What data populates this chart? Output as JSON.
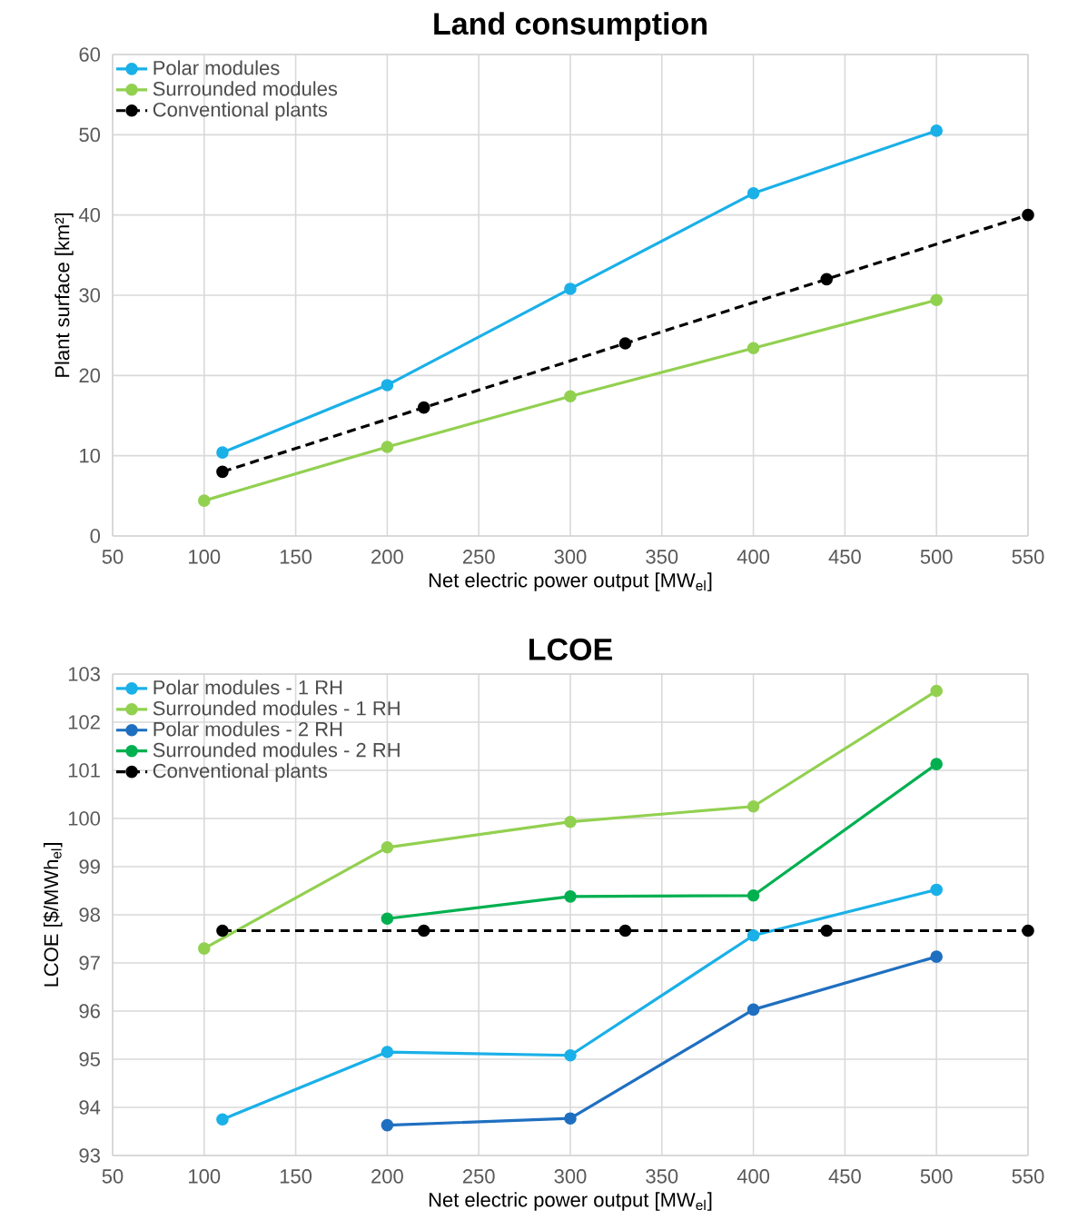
{
  "chart_data": [
    {
      "type": "line",
      "title": "Land consumption",
      "xlabel": "Net electric power output [MW$_{el}$]",
      "ylabel": "Plant surface [km²]",
      "xlim": [
        50,
        550
      ],
      "xticks": [
        50,
        100,
        150,
        200,
        250,
        300,
        350,
        400,
        450,
        500,
        550
      ],
      "ylim": [
        0,
        60
      ],
      "yticks": [
        0,
        10,
        20,
        30,
        40,
        50,
        60
      ],
      "grid": true,
      "legend": "top left",
      "marker": "circle",
      "series": [
        {
          "name": "Polar modules",
          "color": "#1ab0e8",
          "x": [
            110,
            200,
            300,
            400,
            500
          ],
          "values": [
            10.4,
            18.8,
            30.8,
            42.7,
            50.5
          ]
        },
        {
          "name": "Surrounded modules",
          "color": "#92d050",
          "x": [
            100,
            200,
            300,
            400,
            500
          ],
          "values": [
            4.4,
            11.1,
            17.4,
            23.4,
            29.4
          ]
        },
        {
          "name": "Conventional plants",
          "color": "#000000",
          "line_style": "dashed",
          "x": [
            110,
            220,
            330,
            440,
            550
          ],
          "values": [
            8,
            16,
            24,
            32,
            40
          ]
        }
      ]
    },
    {
      "type": "line",
      "title": "LCOE",
      "xlabel": "Net electric power output [MW$_{el}$]",
      "ylabel": "LCOE [$/MWh$_{el}$]",
      "xlim": [
        50,
        550
      ],
      "xticks": [
        50,
        100,
        150,
        200,
        250,
        300,
        350,
        400,
        450,
        500,
        550
      ],
      "ylim": [
        93,
        103
      ],
      "yticks": [
        93,
        94,
        95,
        96,
        97,
        98,
        99,
        100,
        101,
        102,
        103
      ],
      "grid": true,
      "legend": "top left",
      "marker": "circle",
      "series": [
        {
          "name": "Polar modules - 1 RH",
          "color": "#1ab0e8",
          "x": [
            110,
            200,
            300,
            400,
            500
          ],
          "values": [
            93.75,
            95.15,
            95.08,
            97.57,
            98.52
          ]
        },
        {
          "name": "Surrounded modules - 1 RH",
          "color": "#92d050",
          "x": [
            100,
            200,
            300,
            400,
            500
          ],
          "values": [
            97.3,
            99.4,
            99.93,
            100.25,
            102.65
          ]
        },
        {
          "name": "Polar modules - 2 RH",
          "color": "#1f6fc0",
          "x": [
            200,
            300,
            400,
            500
          ],
          "values": [
            93.63,
            93.77,
            96.03,
            97.13
          ]
        },
        {
          "name": "Surrounded modules - 2 RH",
          "color": "#00b050",
          "x": [
            200,
            300,
            400,
            500
          ],
          "values": [
            97.92,
            98.38,
            98.4,
            101.13
          ]
        },
        {
          "name": "Conventional plants",
          "color": "#000000",
          "line_style": "dashed",
          "x": [
            110,
            220,
            330,
            440,
            550
          ],
          "values": [
            97.67,
            97.67,
            97.67,
            97.67,
            97.67
          ]
        }
      ]
    }
  ]
}
